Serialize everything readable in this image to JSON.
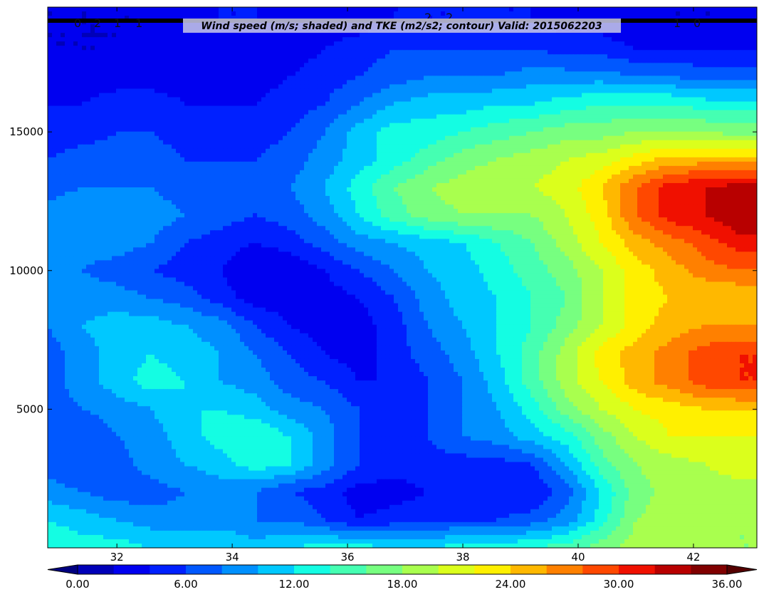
{
  "chart_data": {
    "type": "heatmap",
    "title": "Wind speed (m/s; shaded) and TKE (m2/s2; contour) Valid: 2015062203",
    "xlabel": "",
    "ylabel": "",
    "xlim": [
      30.8,
      43.1
    ],
    "ylim": [
      0,
      19500
    ],
    "x_ticks": [
      "32",
      "34",
      "36",
      "38",
      "40",
      "42"
    ],
    "x_tick_values": [
      32,
      34,
      36,
      38,
      40,
      42
    ],
    "y_ticks": [
      "5000",
      "10000",
      "15000"
    ],
    "y_tick_values": [
      5000,
      10000,
      15000
    ],
    "grid": false,
    "colorbar": {
      "orientation": "horizontal",
      "extend": "both",
      "min": 0,
      "max": 39,
      "step": 2,
      "tick_labels": [
        "0.00",
        "6.00",
        "12.00",
        "18.00",
        "24.00",
        "30.00",
        "36.00"
      ],
      "tick_values": [
        0,
        6,
        12,
        18,
        24,
        30,
        36
      ],
      "colors": [
        "#000080",
        "#0000b8",
        "#0000f0",
        "#0020ff",
        "#0058ff",
        "#0090ff",
        "#00c8ff",
        "#14fde3",
        "#45ffb2",
        "#77ff80",
        "#a9ff4e",
        "#dbff1c",
        "#fff000",
        "#ffb800",
        "#ff8000",
        "#ff4800",
        "#f01000",
        "#b80000",
        "#800000",
        "#550000"
      ]
    },
    "contour_labels": [
      "0",
      "2",
      "1",
      "1",
      "2",
      "2",
      "1",
      "0"
    ],
    "wind_speed_grid": {
      "x": [
        30.8,
        31.4,
        32.0,
        32.6,
        33.2,
        33.8,
        34.4,
        35.0,
        35.6,
        36.2,
        36.8,
        37.4,
        38.0,
        38.6,
        39.2,
        39.8,
        40.4,
        41.0,
        41.6,
        42.2,
        42.8,
        43.1
      ],
      "y": [
        0,
        1000,
        2000,
        3000,
        4000,
        5000,
        6000,
        7000,
        8000,
        9000,
        10000,
        11000,
        12000,
        13000,
        14000,
        15000,
        16000,
        17000,
        18000,
        19000,
        19500
      ],
      "values": [
        [
          14,
          13,
          13,
          12,
          12,
          12,
          11,
          12,
          13,
          13,
          12,
          12,
          13,
          13,
          14,
          15,
          17,
          19,
          19,
          19,
          18,
          18
        ],
        [
          12,
          11,
          10,
          9,
          9,
          9,
          8,
          8,
          6,
          4,
          5,
          6,
          6,
          6,
          7,
          9,
          13,
          18,
          19,
          19,
          18,
          18
        ],
        [
          9,
          8,
          7,
          7,
          8,
          9,
          8,
          6,
          5,
          3,
          3,
          4,
          4,
          4,
          4,
          7,
          12,
          17,
          19,
          19,
          19,
          19
        ],
        [
          7,
          6,
          7,
          9,
          10,
          11,
          13,
          12,
          9,
          6,
          5,
          5,
          5,
          5,
          6,
          10,
          15,
          18,
          19,
          20,
          21,
          21
        ],
        [
          6,
          6,
          8,
          9,
          11,
          13,
          14,
          12,
          9,
          6,
          6,
          6,
          8,
          9,
          11,
          13,
          17,
          20,
          22,
          22,
          22,
          22
        ],
        [
          7,
          8,
          9,
          10,
          12,
          12,
          11,
          9,
          8,
          6,
          5,
          6,
          8,
          10,
          13,
          17,
          20,
          22,
          23,
          24,
          24,
          24
        ],
        [
          7,
          9,
          11,
          13,
          12,
          10,
          9,
          7,
          6,
          4,
          4,
          6,
          8,
          11,
          15,
          19,
          22,
          25,
          27,
          29,
          30,
          30
        ],
        [
          7,
          9,
          11,
          12,
          11,
          10,
          8,
          6,
          4,
          3,
          5,
          7,
          9,
          12,
          15,
          19,
          23,
          25,
          27,
          29,
          30,
          30
        ],
        [
          8,
          10,
          11,
          11,
          10,
          9,
          6,
          4,
          3,
          3,
          5,
          8,
          10,
          12,
          14,
          17,
          20,
          23,
          25,
          26,
          26,
          26
        ],
        [
          8,
          9,
          9,
          8,
          7,
          5,
          3,
          3,
          3,
          4,
          6,
          9,
          11,
          12,
          14,
          16,
          20,
          23,
          24,
          24,
          24,
          24
        ],
        [
          8,
          8,
          7,
          6,
          5,
          4,
          2,
          2,
          4,
          6,
          8,
          10,
          11,
          13,
          15,
          17,
          20,
          23,
          25,
          27,
          28,
          28
        ],
        [
          8,
          9,
          9,
          8,
          6,
          5,
          4,
          5,
          7,
          9,
          10,
          11,
          12,
          14,
          16,
          19,
          22,
          25,
          27,
          29,
          31,
          31
        ],
        [
          9,
          10,
          10,
          9,
          8,
          7,
          6,
          7,
          9,
          12,
          15,
          17,
          18,
          18,
          18,
          20,
          23,
          28,
          31,
          32,
          34,
          34
        ],
        [
          7,
          8,
          8,
          8,
          7,
          7,
          7,
          8,
          10,
          13,
          16,
          18,
          19,
          20,
          20,
          21,
          24,
          28,
          31,
          32,
          33,
          33
        ],
        [
          6,
          7,
          7,
          7,
          6,
          6,
          6,
          7,
          9,
          11,
          13,
          15,
          17,
          18,
          19,
          20,
          21,
          23,
          25,
          25,
          25,
          25
        ],
        [
          5,
          5,
          6,
          6,
          5,
          5,
          5,
          6,
          8,
          11,
          13,
          13,
          14,
          15,
          16,
          17,
          17,
          18,
          18,
          18,
          17,
          17
        ],
        [
          4,
          4,
          5,
          5,
          4,
          4,
          4,
          5,
          6,
          8,
          10,
          11,
          11,
          12,
          12,
          13,
          14,
          14,
          14,
          13,
          13,
          13
        ],
        [
          3,
          3,
          3,
          3,
          3,
          3,
          3,
          4,
          5,
          6,
          7,
          8,
          8,
          8,
          9,
          9,
          9,
          8,
          8,
          7,
          7,
          7
        ],
        [
          2,
          2,
          2,
          3,
          3,
          3,
          3,
          3,
          4,
          5,
          6,
          6,
          6,
          6,
          6,
          5,
          5,
          4,
          4,
          4,
          4,
          4
        ],
        [
          2,
          2,
          2,
          2,
          3,
          4,
          4,
          3,
          3,
          3,
          4,
          4,
          4,
          4,
          4,
          3,
          3,
          2,
          2,
          2,
          2,
          2
        ],
        [
          2,
          2,
          2,
          2,
          3,
          4,
          4,
          3,
          3,
          3,
          4,
          4,
          4,
          4,
          4,
          3,
          3,
          2,
          2,
          2,
          2,
          2
        ]
      ]
    }
  }
}
